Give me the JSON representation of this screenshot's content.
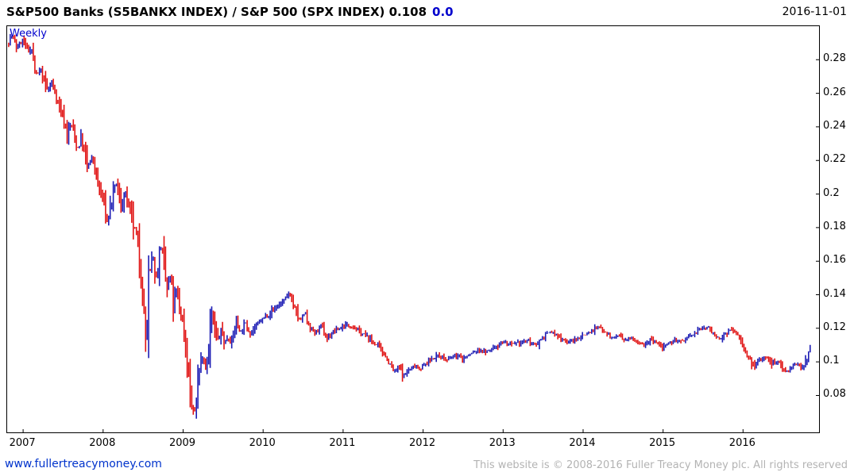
{
  "header": {
    "title_main": "S&P500 Banks  (S5BANKX INDEX) / S&P 500 (SPX INDEX) 0.108",
    "title_change": "0.0",
    "date": "2016-11-01"
  },
  "footer": {
    "website": "www.fullertreacymoney.com",
    "copyright": "This website is © 2008-2016 Fuller Treacy Money plc. All rights reserved"
  },
  "chart_data": {
    "type": "candlestick",
    "timeframe_label": "Weekly",
    "title": "S&P500 Banks (S5BANKX INDEX) / S&P 500 (SPX INDEX)",
    "last_value": 0.108,
    "change": 0.0,
    "grid": false,
    "legend_position": "none",
    "xlabel": "",
    "ylabel": "",
    "xlim": [
      2006.8,
      2016.95
    ],
    "ylim": [
      0.058,
      0.3
    ],
    "data_range": [
      2006.8,
      2016.84
    ],
    "x_tick_labels": [
      "2007",
      "2008",
      "2009",
      "2010",
      "2011",
      "2012",
      "2013",
      "2014",
      "2015",
      "2016"
    ],
    "x_tick_values": [
      2007,
      2008,
      2009,
      2010,
      2011,
      2012,
      2013,
      2014,
      2015,
      2016
    ],
    "y_tick_labels": [
      "0.28",
      "0.26",
      "0.24",
      "0.22",
      "0.2",
      "0.18",
      "0.16",
      "0.14",
      "0.12",
      "0.1",
      "0.08"
    ],
    "y_tick_values": [
      0.28,
      0.26,
      0.24,
      0.22,
      0.2,
      0.18,
      0.16,
      0.14,
      0.12,
      0.1,
      0.08
    ],
    "colors": {
      "up": "#1c1cb4",
      "down": "#e01212",
      "border": "#000000",
      "background": "#ffffff"
    },
    "series_keypoints": [
      [
        2006.8,
        0.29
      ],
      [
        2006.86,
        0.294
      ],
      [
        2006.92,
        0.287
      ],
      [
        2007.0,
        0.292
      ],
      [
        2007.06,
        0.284
      ],
      [
        2007.1,
        0.288
      ],
      [
        2007.16,
        0.27
      ],
      [
        2007.22,
        0.274
      ],
      [
        2007.3,
        0.262
      ],
      [
        2007.36,
        0.266
      ],
      [
        2007.44,
        0.254
      ],
      [
        2007.5,
        0.246
      ],
      [
        2007.55,
        0.236
      ],
      [
        2007.6,
        0.242
      ],
      [
        2007.68,
        0.227
      ],
      [
        2007.73,
        0.233
      ],
      [
        2007.8,
        0.216
      ],
      [
        2007.87,
        0.222
      ],
      [
        2007.94,
        0.205
      ],
      [
        2008.0,
        0.197
      ],
      [
        2008.05,
        0.184
      ],
      [
        2008.1,
        0.194
      ],
      [
        2008.16,
        0.207
      ],
      [
        2008.22,
        0.193
      ],
      [
        2008.28,
        0.2
      ],
      [
        2008.34,
        0.188
      ],
      [
        2008.4,
        0.178
      ],
      [
        2008.44,
        0.168
      ],
      [
        2008.48,
        0.15
      ],
      [
        2008.52,
        0.122
      ],
      [
        2008.54,
        0.108
      ],
      [
        2008.57,
        0.148
      ],
      [
        2008.62,
        0.163
      ],
      [
        2008.67,
        0.15
      ],
      [
        2008.72,
        0.17
      ],
      [
        2008.76,
        0.155
      ],
      [
        2008.8,
        0.143
      ],
      [
        2008.84,
        0.15
      ],
      [
        2008.88,
        0.135
      ],
      [
        2008.92,
        0.142
      ],
      [
        2008.96,
        0.13
      ],
      [
        2009.0,
        0.124
      ],
      [
        2009.04,
        0.105
      ],
      [
        2009.08,
        0.085
      ],
      [
        2009.12,
        0.069
      ],
      [
        2009.16,
        0.073
      ],
      [
        2009.2,
        0.094
      ],
      [
        2009.24,
        0.104
      ],
      [
        2009.28,
        0.098
      ],
      [
        2009.32,
        0.11
      ],
      [
        2009.36,
        0.128
      ],
      [
        2009.4,
        0.118
      ],
      [
        2009.44,
        0.112
      ],
      [
        2009.48,
        0.119
      ],
      [
        2009.52,
        0.111
      ],
      [
        2009.56,
        0.115
      ],
      [
        2009.6,
        0.111
      ],
      [
        2009.66,
        0.124
      ],
      [
        2009.72,
        0.118
      ],
      [
        2009.78,
        0.123
      ],
      [
        2009.84,
        0.117
      ],
      [
        2009.9,
        0.121
      ],
      [
        2009.96,
        0.124
      ],
      [
        2010.05,
        0.128
      ],
      [
        2010.15,
        0.132
      ],
      [
        2010.25,
        0.136
      ],
      [
        2010.33,
        0.141
      ],
      [
        2010.4,
        0.131
      ],
      [
        2010.46,
        0.124
      ],
      [
        2010.52,
        0.129
      ],
      [
        2010.58,
        0.121
      ],
      [
        2010.65,
        0.117
      ],
      [
        2010.72,
        0.121
      ],
      [
        2010.8,
        0.114
      ],
      [
        2010.88,
        0.118
      ],
      [
        2010.96,
        0.12
      ],
      [
        2011.04,
        0.122
      ],
      [
        2011.12,
        0.121
      ],
      [
        2011.2,
        0.118
      ],
      [
        2011.3,
        0.115
      ],
      [
        2011.4,
        0.111
      ],
      [
        2011.5,
        0.106
      ],
      [
        2011.58,
        0.099
      ],
      [
        2011.64,
        0.094
      ],
      [
        2011.7,
        0.097
      ],
      [
        2011.76,
        0.092
      ],
      [
        2011.82,
        0.095
      ],
      [
        2011.9,
        0.098
      ],
      [
        2011.96,
        0.096
      ],
      [
        2012.04,
        0.099
      ],
      [
        2012.12,
        0.102
      ],
      [
        2012.2,
        0.104
      ],
      [
        2012.3,
        0.101
      ],
      [
        2012.4,
        0.104
      ],
      [
        2012.5,
        0.102
      ],
      [
        2012.6,
        0.105
      ],
      [
        2012.7,
        0.107
      ],
      [
        2012.8,
        0.106
      ],
      [
        2012.9,
        0.109
      ],
      [
        2013.0,
        0.112
      ],
      [
        2013.1,
        0.11
      ],
      [
        2013.2,
        0.111
      ],
      [
        2013.3,
        0.113
      ],
      [
        2013.4,
        0.11
      ],
      [
        2013.5,
        0.115
      ],
      [
        2013.6,
        0.118
      ],
      [
        2013.7,
        0.115
      ],
      [
        2013.8,
        0.112
      ],
      [
        2013.9,
        0.113
      ],
      [
        2014.0,
        0.116
      ],
      [
        2014.1,
        0.118
      ],
      [
        2014.2,
        0.121
      ],
      [
        2014.28,
        0.118
      ],
      [
        2014.36,
        0.114
      ],
      [
        2014.44,
        0.116
      ],
      [
        2014.52,
        0.112
      ],
      [
        2014.6,
        0.115
      ],
      [
        2014.68,
        0.112
      ],
      [
        2014.76,
        0.11
      ],
      [
        2014.84,
        0.113
      ],
      [
        2014.92,
        0.111
      ],
      [
        2015.0,
        0.108
      ],
      [
        2015.08,
        0.111
      ],
      [
        2015.16,
        0.113
      ],
      [
        2015.24,
        0.112
      ],
      [
        2015.32,
        0.115
      ],
      [
        2015.4,
        0.117
      ],
      [
        2015.48,
        0.12
      ],
      [
        2015.56,
        0.121
      ],
      [
        2015.64,
        0.117
      ],
      [
        2015.7,
        0.112
      ],
      [
        2015.76,
        0.116
      ],
      [
        2015.84,
        0.119
      ],
      [
        2015.92,
        0.117
      ],
      [
        2016.0,
        0.11
      ],
      [
        2016.08,
        0.101
      ],
      [
        2016.14,
        0.097
      ],
      [
        2016.2,
        0.101
      ],
      [
        2016.28,
        0.103
      ],
      [
        2016.36,
        0.099
      ],
      [
        2016.44,
        0.101
      ],
      [
        2016.5,
        0.096
      ],
      [
        2016.56,
        0.094
      ],
      [
        2016.62,
        0.097
      ],
      [
        2016.68,
        0.099
      ],
      [
        2016.74,
        0.097
      ],
      [
        2016.8,
        0.102
      ],
      [
        2016.84,
        0.108
      ]
    ]
  }
}
